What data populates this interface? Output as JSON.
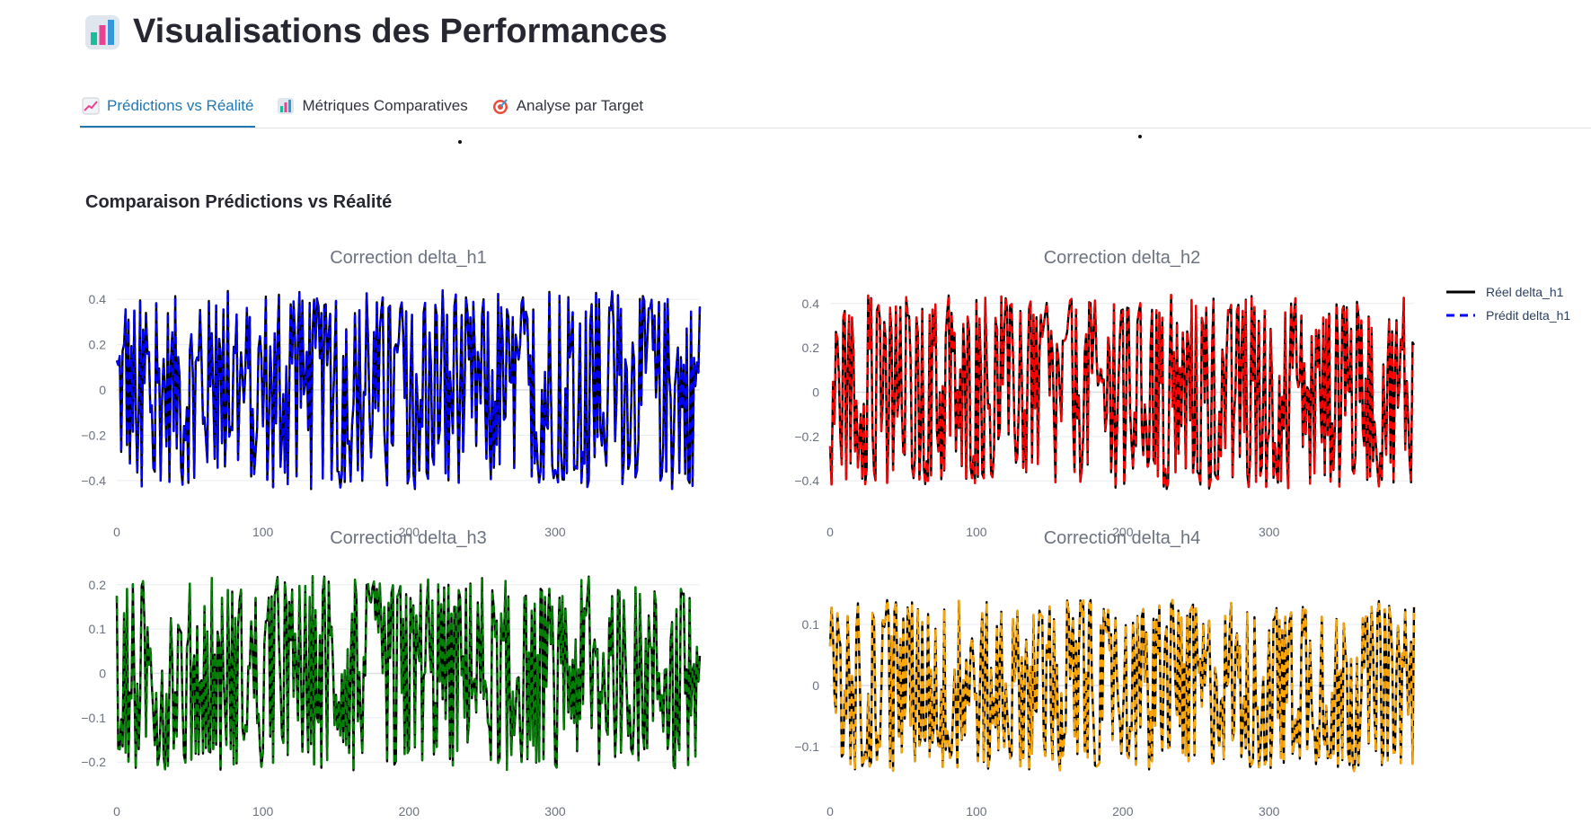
{
  "header": {
    "title": "Visualisations des Performances",
    "icon": "bar-chart-icon"
  },
  "tabs": [
    {
      "label": "Prédictions vs Réalité",
      "icon": "trend-chart-icon",
      "active": true
    },
    {
      "label": "Métriques Comparatives",
      "icon": "bar-chart-icon",
      "active": false
    },
    {
      "label": "Analyse par Target",
      "icon": "target-icon",
      "active": false
    }
  ],
  "section": {
    "title": "Comparaison Prédictions vs Réalité"
  },
  "legend": {
    "items": [
      {
        "label": "Réel delta_h1",
        "color": "#000000",
        "dash": "solid"
      },
      {
        "label": "Prédit delta_h1",
        "color": "#0000ff",
        "dash": "dash"
      }
    ]
  },
  "chart_data": [
    {
      "type": "line",
      "title": "Correction delta_h1",
      "x_ticks": [
        0,
        100,
        200,
        300
      ],
      "y_ticks": [
        -0.4,
        -0.2,
        0,
        0.2,
        0.4
      ],
      "y_tick_labels": [
        "−0.4",
        "−0.2",
        "0",
        "0.2",
        "0.4"
      ],
      "xlim": [
        0,
        399
      ],
      "ylim": [
        -0.46,
        0.46
      ],
      "amplitude": 0.44,
      "grid": true,
      "series": [
        {
          "name": "Réel delta_h1",
          "color": "#000000",
          "dash": "solid"
        },
        {
          "name": "Prédit delta_h1",
          "color": "#0000ff",
          "dash": "dash"
        }
      ]
    },
    {
      "type": "line",
      "title": "Correction delta_h2",
      "x_ticks": [
        0,
        100,
        200,
        300
      ],
      "y_ticks": [
        -0.4,
        -0.2,
        0,
        0.2,
        0.4
      ],
      "y_tick_labels": [
        "−0.4",
        "−0.2",
        "0",
        "0.2",
        "0.4"
      ],
      "xlim": [
        0,
        399
      ],
      "ylim": [
        -0.46,
        0.46
      ],
      "amplitude": 0.44,
      "grid": true,
      "series": [
        {
          "color": "#000000",
          "dash": "solid"
        },
        {
          "color": "#ff0000",
          "dash": "dash"
        }
      ]
    },
    {
      "type": "line",
      "title": "Correction delta_h3",
      "x_ticks": [
        0,
        100,
        200,
        300
      ],
      "y_ticks": [
        -0.2,
        -0.1,
        0,
        0.1,
        0.2
      ],
      "y_tick_labels": [
        "−0.2",
        "−0.1",
        "0",
        "0.1",
        "0.2"
      ],
      "xlim": [
        0,
        399
      ],
      "ylim": [
        -0.23,
        0.23
      ],
      "amplitude": 0.22,
      "grid": true,
      "series": [
        {
          "color": "#000000",
          "dash": "solid"
        },
        {
          "color": "#008000",
          "dash": "dash"
        }
      ]
    },
    {
      "type": "line",
      "title": "Correction delta_h4",
      "x_ticks": [
        0,
        100,
        200,
        300
      ],
      "y_ticks": [
        -0.1,
        0,
        0.1
      ],
      "y_tick_labels": [
        "−0.1",
        "0",
        "0.1"
      ],
      "xlim": [
        0,
        399
      ],
      "ylim": [
        -0.15,
        0.15
      ],
      "amplitude": 0.14,
      "grid": true,
      "series": [
        {
          "color": "#000000",
          "dash": "solid"
        },
        {
          "color": "#ffa500",
          "dash": "dash"
        }
      ]
    }
  ]
}
